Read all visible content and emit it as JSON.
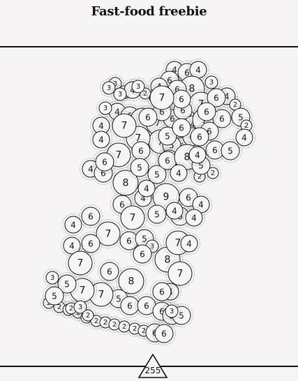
{
  "page": {
    "title": "Fast-food freebie"
  },
  "total": {
    "value": "255"
  },
  "bubble_values": [
    4,
    6,
    4,
    6,
    8,
    3,
    4,
    6,
    3,
    2,
    4,
    3,
    7,
    6,
    2,
    4,
    3,
    3,
    4,
    6,
    7,
    7,
    6,
    6,
    4,
    4,
    7,
    6,
    7,
    5,
    6,
    5,
    2,
    4,
    6,
    7,
    7,
    5,
    6,
    5,
    4,
    6,
    8,
    6,
    4,
    9,
    6,
    4,
    5,
    6,
    4,
    6,
    6,
    4,
    7,
    6,
    4,
    6,
    5,
    5,
    4,
    6,
    7,
    6,
    8,
    5,
    4,
    7,
    8,
    6,
    5,
    7,
    7,
    6,
    6,
    6,
    5,
    3,
    2,
    2,
    2,
    2,
    2,
    2,
    2,
    2,
    2,
    2,
    2,
    2,
    2,
    6,
    6,
    5,
    3,
    4,
    7,
    5,
    7,
    6,
    2,
    4,
    8,
    5,
    4,
    6,
    5,
    3,
    3,
    2,
    7,
    6,
    6,
    6,
    6,
    4,
    6,
    7,
    6,
    3,
    2,
    4,
    4,
    6,
    5,
    3
  ]
}
